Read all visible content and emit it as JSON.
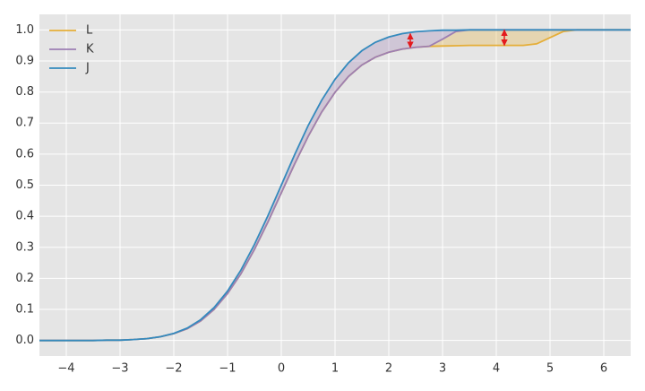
{
  "chart_data": {
    "type": "line",
    "x": [
      -4.5,
      -4.25,
      -4,
      -3.75,
      -3.5,
      -3.25,
      -3,
      -2.75,
      -2.5,
      -2.25,
      -2,
      -1.75,
      -1.5,
      -1.25,
      -1,
      -0.75,
      -0.5,
      -0.25,
      0,
      0.25,
      0.5,
      0.75,
      1,
      1.25,
      1.5,
      1.75,
      2,
      2.25,
      2.5,
      2.75,
      3,
      3.25,
      3.5,
      3.75,
      4,
      4.25,
      4.5,
      4.75,
      5,
      5.25,
      5.5,
      5.75,
      6,
      6.25,
      6.5
    ],
    "series": [
      {
        "name": "L",
        "color": "#e5ae38",
        "values": [
          0,
          0,
          0,
          0,
          0,
          0.001,
          0.001,
          0.003,
          0.006,
          0.012,
          0.022,
          0.038,
          0.063,
          0.1,
          0.151,
          0.215,
          0.293,
          0.381,
          0.475,
          0.569,
          0.657,
          0.735,
          0.799,
          0.85,
          0.887,
          0.912,
          0.928,
          0.938,
          0.944,
          0.947,
          0.948,
          0.949,
          0.95,
          0.95,
          0.95,
          0.95,
          0.95,
          0.955,
          0.975,
          0.995,
          1,
          1,
          1,
          1,
          1
        ]
      },
      {
        "name": "K",
        "color": "#9d7fb3",
        "values": [
          0,
          0,
          0,
          0,
          0,
          0.001,
          0.001,
          0.003,
          0.006,
          0.012,
          0.022,
          0.038,
          0.063,
          0.1,
          0.151,
          0.215,
          0.293,
          0.381,
          0.475,
          0.569,
          0.657,
          0.735,
          0.799,
          0.85,
          0.887,
          0.912,
          0.928,
          0.938,
          0.944,
          0.947,
          0.97,
          0.995,
          1,
          1,
          1,
          1,
          1,
          1,
          1,
          1,
          1,
          1,
          1,
          1,
          1
        ]
      },
      {
        "name": "J",
        "color": "#348abd",
        "values": [
          0,
          0,
          0,
          0,
          0,
          0.001,
          0.001,
          0.003,
          0.006,
          0.012,
          0.023,
          0.04,
          0.067,
          0.106,
          0.159,
          0.227,
          0.309,
          0.401,
          0.5,
          0.599,
          0.692,
          0.773,
          0.841,
          0.894,
          0.933,
          0.96,
          0.977,
          0.988,
          0.994,
          0.997,
          0.999,
          0.999,
          1,
          1,
          1,
          1,
          1,
          1,
          1,
          1,
          1,
          1,
          1,
          1,
          1
        ]
      }
    ],
    "arrows": [
      {
        "x": 2.4,
        "y": [
          0.943,
          0.988
        ]
      },
      {
        "x": 4.15,
        "y": [
          0.95,
          1.0
        ]
      }
    ],
    "arrow_color": "#e41a1c",
    "xlim": [
      -4.5,
      6.5
    ],
    "ylim": [
      -0.05,
      1.05
    ],
    "xticks": [
      {
        "value": -4,
        "label": "−4"
      },
      {
        "value": -3,
        "label": "−3"
      },
      {
        "value": -2,
        "label": "−2"
      },
      {
        "value": -1,
        "label": "−1"
      },
      0,
      1,
      2,
      3,
      4,
      5,
      6
    ],
    "yticks": [
      {
        "value": 0,
        "label": "0.0"
      },
      0.1,
      0.2,
      0.3,
      0.4,
      0.5,
      0.6,
      0.7,
      0.8,
      0.9,
      {
        "value": 1,
        "label": "1.0"
      }
    ],
    "grid": true,
    "legend": "upper-left"
  }
}
